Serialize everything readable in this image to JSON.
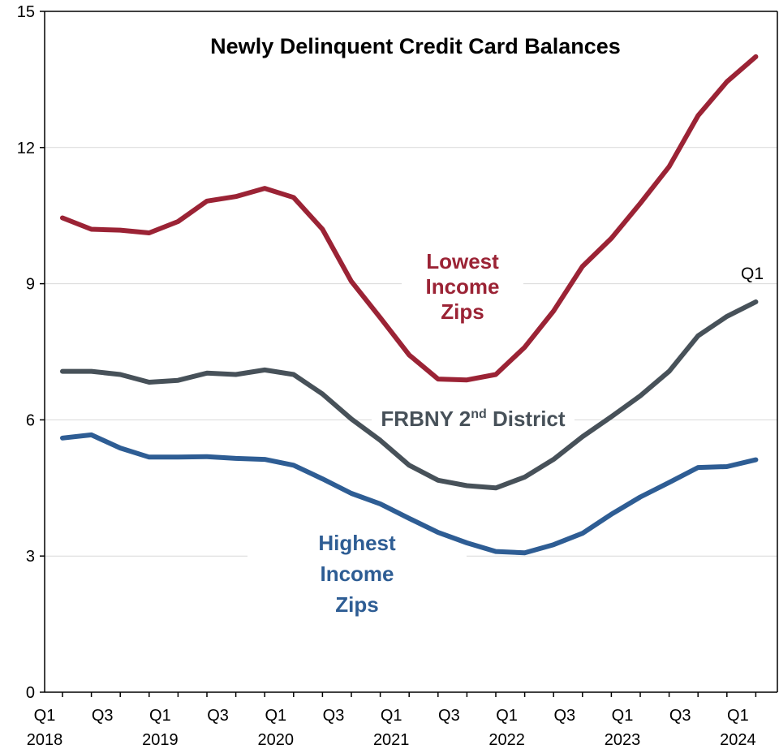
{
  "chart_data": {
    "type": "line",
    "title": "Newly Delinquent Credit Card Balances",
    "xlabel": "",
    "ylabel": "",
    "ylim": [
      0,
      15
    ],
    "yticks": [
      0,
      3,
      6,
      9,
      12,
      15
    ],
    "grid": true,
    "x_tick_labels": [
      {
        "quarter": "Q1",
        "year": "2018"
      },
      {
        "quarter": "Q3",
        "year": ""
      },
      {
        "quarter": "Q1",
        "year": "2019"
      },
      {
        "quarter": "Q3",
        "year": ""
      },
      {
        "quarter": "Q1",
        "year": "2020"
      },
      {
        "quarter": "Q3",
        "year": ""
      },
      {
        "quarter": "Q1",
        "year": "2021"
      },
      {
        "quarter": "Q3",
        "year": ""
      },
      {
        "quarter": "Q1",
        "year": "2022"
      },
      {
        "quarter": "Q3",
        "year": ""
      },
      {
        "quarter": "Q1",
        "year": "2023"
      },
      {
        "quarter": "Q3",
        "year": ""
      },
      {
        "quarter": "Q1",
        "year": "2024"
      }
    ],
    "x": [
      "2018Q1",
      "2018Q2",
      "2018Q3",
      "2018Q4",
      "2019Q1",
      "2019Q2",
      "2019Q3",
      "2019Q4",
      "2020Q1",
      "2020Q2",
      "2020Q3",
      "2020Q4",
      "2021Q1",
      "2021Q2",
      "2021Q3",
      "2021Q4",
      "2022Q1",
      "2022Q2",
      "2022Q3",
      "2022Q4",
      "2023Q1",
      "2023Q2",
      "2023Q3",
      "2023Q4",
      "2024Q1"
    ],
    "series": [
      {
        "name": "Lowest Income Zips",
        "name_lines": [
          "Lowest",
          "Income",
          "Zips"
        ],
        "color": "#9b2335",
        "values": [
          10.45,
          10.2,
          10.18,
          10.12,
          10.37,
          10.82,
          10.92,
          11.1,
          10.9,
          10.2,
          9.05,
          8.25,
          7.43,
          6.9,
          6.88,
          7.0,
          7.6,
          8.4,
          9.38,
          10.0,
          10.77,
          11.58,
          12.7,
          13.45,
          14.0
        ],
        "end_label": "Q1"
      },
      {
        "name": "FRBNY 2nd District",
        "name_parts": {
          "before": "FRBNY 2",
          "sup": "nd",
          "after": " District"
        },
        "color": "#475159",
        "values": [
          7.07,
          7.07,
          7.0,
          6.83,
          6.87,
          7.03,
          7.0,
          7.1,
          7.0,
          6.57,
          6.02,
          5.55,
          5.0,
          4.67,
          4.55,
          4.5,
          4.74,
          5.13,
          5.63,
          6.07,
          6.53,
          7.07,
          7.85,
          8.28,
          8.6
        ]
      },
      {
        "name": "Highest Income Zips",
        "name_lines": [
          "Highest",
          "Income",
          "Zips"
        ],
        "color": "#2e5d94",
        "values": [
          5.6,
          5.67,
          5.38,
          5.18,
          5.18,
          5.19,
          5.15,
          5.13,
          5.0,
          4.7,
          4.38,
          4.15,
          3.83,
          3.52,
          3.29,
          3.1,
          3.07,
          3.25,
          3.5,
          3.92,
          4.3,
          4.62,
          4.95,
          4.97,
          5.12
        ]
      }
    ]
  }
}
